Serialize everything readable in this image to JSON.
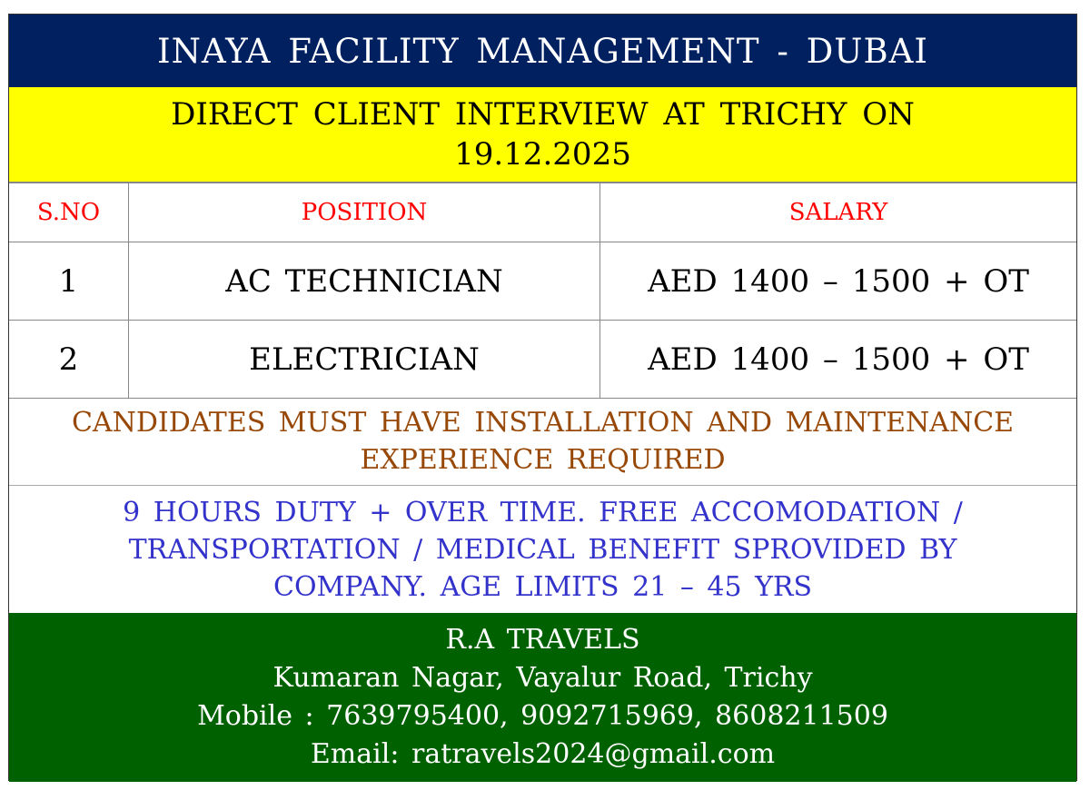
{
  "header": {
    "title": "INAYA FACILITY MANAGEMENT - DUBAI"
  },
  "subheader": {
    "line1": "DIRECT CLIENT INTERVIEW AT TRICHY ON",
    "line2": "19.12.2025"
  },
  "table": {
    "columns": [
      "S.NO",
      "POSITION",
      "SALARY"
    ],
    "rows": [
      {
        "sno": "1",
        "position": "AC TECHNICIAN",
        "salary": "AED 1400 – 1500 + OT"
      },
      {
        "sno": "2",
        "position": "ELECTRICIAN",
        "salary": "AED 1400 – 1500 + OT"
      }
    ]
  },
  "requirement": {
    "line1": "CANDIDATES MUST HAVE INSTALLATION AND MAINTENANCE",
    "line2": "EXPERIENCE REQUIRED"
  },
  "benefits": {
    "line1": "9 HOURS DUTY + OVER TIME. FREE ACCOMODATION /",
    "line2": "TRANSPORTATION / MEDICAL BENEFIT SPROVIDED BY",
    "line3": "COMPANY. AGE LIMITS 21 – 45 YRS"
  },
  "footer": {
    "agency": "R.A TRAVELS",
    "address": "Kumaran Nagar, Vayalur Road, Trichy",
    "mobile": "Mobile : 7639795400, 9092715969, 8608211509",
    "email": "Email: ratravels2024@gmail.com"
  },
  "colors": {
    "header_bg": "#002060",
    "subheader_bg": "#ffff00",
    "column_header": "#ff0000",
    "requirement": "#984806",
    "benefits": "#3333cc",
    "footer_bg": "#006100"
  }
}
